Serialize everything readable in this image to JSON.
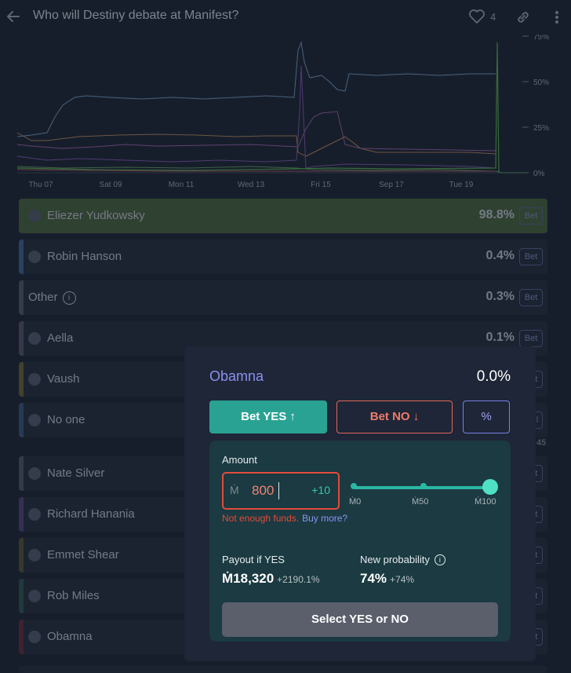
{
  "header": {
    "title": "Who will Destiny debate at Manifest?",
    "like_count": "4"
  },
  "chart_data": {
    "type": "line",
    "x_labels": [
      "Thu 07",
      "Sat 09",
      "Mon 11",
      "Wed 13",
      "Fri 15",
      "Sep 17",
      "Tue 19"
    ],
    "y_ticks": [
      "75%",
      "50%",
      "25%",
      "0%"
    ],
    "ylim": [
      0,
      75
    ]
  },
  "answers": [
    {
      "name": "Eliezer Yudkowsky",
      "pct": "98.8%",
      "bet": "Bet",
      "color": "#4f7a3a"
    },
    {
      "name": "Robin Hanson",
      "pct": "0.4%",
      "bet": "Bet",
      "color": "#3a5a85"
    },
    {
      "name": "Other",
      "pct": "0.3%",
      "bet": "Bet",
      "color": "#555c6c"
    },
    {
      "name": "Aella",
      "pct": "0.1%",
      "bet": "Bet",
      "color": "#5a5470"
    },
    {
      "name": "Vaush",
      "pct": "",
      "bet": "Bet",
      "color": "#6e6a3a"
    },
    {
      "name": "No one",
      "pct": "",
      "bet": "Sell",
      "color": "#3e5a85"
    },
    {
      "name": "Nate Silver",
      "pct": "",
      "bet": "Bet",
      "color": "#575e6a"
    },
    {
      "name": "Richard Hanania",
      "pct": "",
      "bet": "Bet",
      "color": "#5a4a85"
    },
    {
      "name": "Emmet Shear",
      "pct": "",
      "bet": "Bet",
      "color": "#5d5a3a"
    },
    {
      "name": "Rob Miles",
      "pct": "",
      "bet": "Bet",
      "color": "#2e5e5a"
    },
    {
      "name": "Obamna",
      "pct": "",
      "bet": "Bet",
      "color": "#6a2e44"
    }
  ],
  "partial_label": "45",
  "modal": {
    "answer": "Obamna",
    "prob": "0.0%",
    "yes_label": "Bet YES ↑",
    "no_label": "Bet NO ↓",
    "pct_label": "%",
    "amount_label": "Amount",
    "currency": "Ṁ",
    "amount_value": "800",
    "increment": "+10",
    "slider_ticks": [
      "Ṁ0",
      "Ṁ50",
      "Ṁ100"
    ],
    "slider_level": 1.0,
    "error": "Not enough funds.",
    "buy_more": "Buy more?",
    "payout_label": "Payout if YES",
    "payout_value": "Ṁ18,320",
    "payout_change": "+2190.1%",
    "newprob_label": "New probability",
    "newprob_value": "74%",
    "newprob_change": "+74%",
    "submit_label": "Select YES or NO"
  }
}
